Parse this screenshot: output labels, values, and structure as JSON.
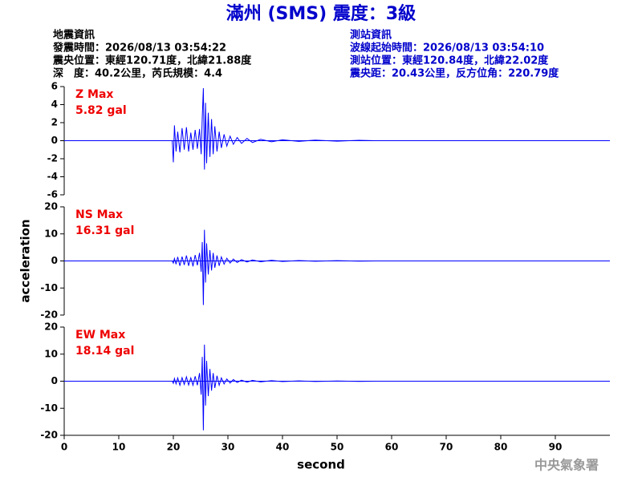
{
  "header": {
    "title": "滿州 (SMS) 震度：3級",
    "event_info": [
      "地震資訊",
      "發震時間：2026/08/13 03:54:22",
      "震央位置：東經120.71度，北緯21.88度",
      "深　度：40.2公里，芮氏規模：4.4"
    ],
    "station_info": [
      "測站資訊",
      "波線起始時間：2026/08/13 03:54:10",
      "測站位置：東經120.84度，北緯22.02度",
      "震央距：20.43公里，反方位角：220.79度"
    ],
    "footer": "中央氣象署"
  },
  "chart_data": [
    {
      "type": "line",
      "annotations": [
        "Z Max",
        "5.82 gal"
      ],
      "color": "#0000ff",
      "xlim": [
        0,
        100
      ],
      "ylim": [
        -6,
        6
      ],
      "yticks": [
        6,
        4,
        2,
        0,
        -2,
        -4,
        -6
      ],
      "x": [
        0,
        19.8,
        20.0,
        20.2,
        20.5,
        20.8,
        21.2,
        21.6,
        22.0,
        22.4,
        22.8,
        23.2,
        23.6,
        24.0,
        24.4,
        24.8,
        25.1,
        25.3,
        25.5,
        25.7,
        25.9,
        26.1,
        26.4,
        26.7,
        27.0,
        27.3,
        27.6,
        28.0,
        28.4,
        28.8,
        29.3,
        29.8,
        30.4,
        31.0,
        31.7,
        32.5,
        33.5,
        34.5,
        36,
        38,
        40,
        43,
        46,
        50,
        54,
        57,
        100
      ],
      "values": [
        0,
        0,
        -2.4,
        1.7,
        -1.2,
        1.0,
        -1.3,
        1.4,
        -1.0,
        1.5,
        -1.2,
        0.9,
        -1.0,
        1.2,
        -0.9,
        1.3,
        -1.5,
        2.6,
        5.82,
        -3.2,
        4.2,
        -2.5,
        3.1,
        -1.8,
        2.4,
        -1.5,
        1.6,
        -1.2,
        1.0,
        -0.8,
        0.7,
        -0.6,
        0.5,
        -0.4,
        0.35,
        -0.3,
        0.25,
        -0.2,
        0.15,
        -0.12,
        0.1,
        -0.08,
        0.07,
        -0.06,
        0.05,
        0,
        0
      ]
    },
    {
      "type": "line",
      "annotations": [
        "NS Max",
        "16.31 gal"
      ],
      "color": "#0000ff",
      "ylabel": "acceleration",
      "xlim": [
        0,
        100
      ],
      "ylim": [
        -20,
        20
      ],
      "yticks": [
        20,
        10,
        0,
        -10,
        -20
      ],
      "x": [
        0,
        19.8,
        20.0,
        20.2,
        20.5,
        20.8,
        21.2,
        21.6,
        22.0,
        22.4,
        22.8,
        23.2,
        23.6,
        24.0,
        24.4,
        24.8,
        25.1,
        25.3,
        25.5,
        25.7,
        25.9,
        26.1,
        26.4,
        26.7,
        27.0,
        27.3,
        27.6,
        28.0,
        28.4,
        28.8,
        29.3,
        29.8,
        30.4,
        31.0,
        31.7,
        32.5,
        33.5,
        34.5,
        36,
        38,
        40,
        43,
        46,
        50,
        54,
        57,
        100
      ],
      "values": [
        0,
        0,
        -0.8,
        0.9,
        -1.2,
        1.5,
        -1.8,
        1.6,
        -1.5,
        2.0,
        -1.8,
        1.5,
        -2.0,
        2.2,
        -1.6,
        3.0,
        -4.0,
        7.0,
        -16.31,
        11.5,
        -8.0,
        6.5,
        -5.0,
        4.0,
        -3.5,
        3.0,
        -2.5,
        2.0,
        -1.8,
        1.5,
        -1.2,
        1.0,
        -0.8,
        0.7,
        -0.6,
        0.5,
        -0.4,
        0.35,
        -0.3,
        0.25,
        -0.2,
        0.15,
        -0.12,
        0.1,
        -0.08,
        0,
        0
      ]
    },
    {
      "type": "line",
      "annotations": [
        "EW Max",
        "18.14 gal"
      ],
      "color": "#0000ff",
      "xlabel": "second",
      "xlim": [
        0,
        100
      ],
      "ylim": [
        -20,
        20
      ],
      "yticks": [
        20,
        10,
        0,
        -10,
        -20
      ],
      "xticks": [
        0,
        10,
        20,
        30,
        40,
        50,
        60,
        70,
        80,
        90
      ],
      "x": [
        0,
        19.8,
        20.0,
        20.2,
        20.5,
        20.8,
        21.2,
        21.6,
        22.0,
        22.4,
        22.8,
        23.2,
        23.6,
        24.0,
        24.4,
        24.8,
        25.1,
        25.3,
        25.5,
        25.7,
        25.9,
        26.1,
        26.4,
        26.7,
        27.0,
        27.3,
        27.6,
        28.0,
        28.4,
        28.8,
        29.3,
        29.8,
        30.4,
        31.0,
        31.7,
        32.5,
        33.5,
        34.5,
        36,
        38,
        40,
        43,
        46,
        50,
        54,
        57,
        100
      ],
      "values": [
        0,
        0,
        -0.8,
        1.0,
        -1.0,
        1.2,
        -1.5,
        1.3,
        -1.2,
        1.6,
        -1.4,
        1.2,
        -1.5,
        1.8,
        -1.5,
        3.0,
        -5.0,
        9.0,
        -18.14,
        13.5,
        -9.0,
        7.5,
        -5.5,
        4.5,
        -3.5,
        3.0,
        -2.5,
        2.0,
        -1.5,
        1.2,
        -1.0,
        0.8,
        -0.7,
        0.6,
        -0.5,
        0.4,
        -0.35,
        0.3,
        -0.25,
        0.2,
        -0.15,
        0.12,
        -0.1,
        0.08,
        -0.06,
        0,
        0
      ]
    }
  ]
}
